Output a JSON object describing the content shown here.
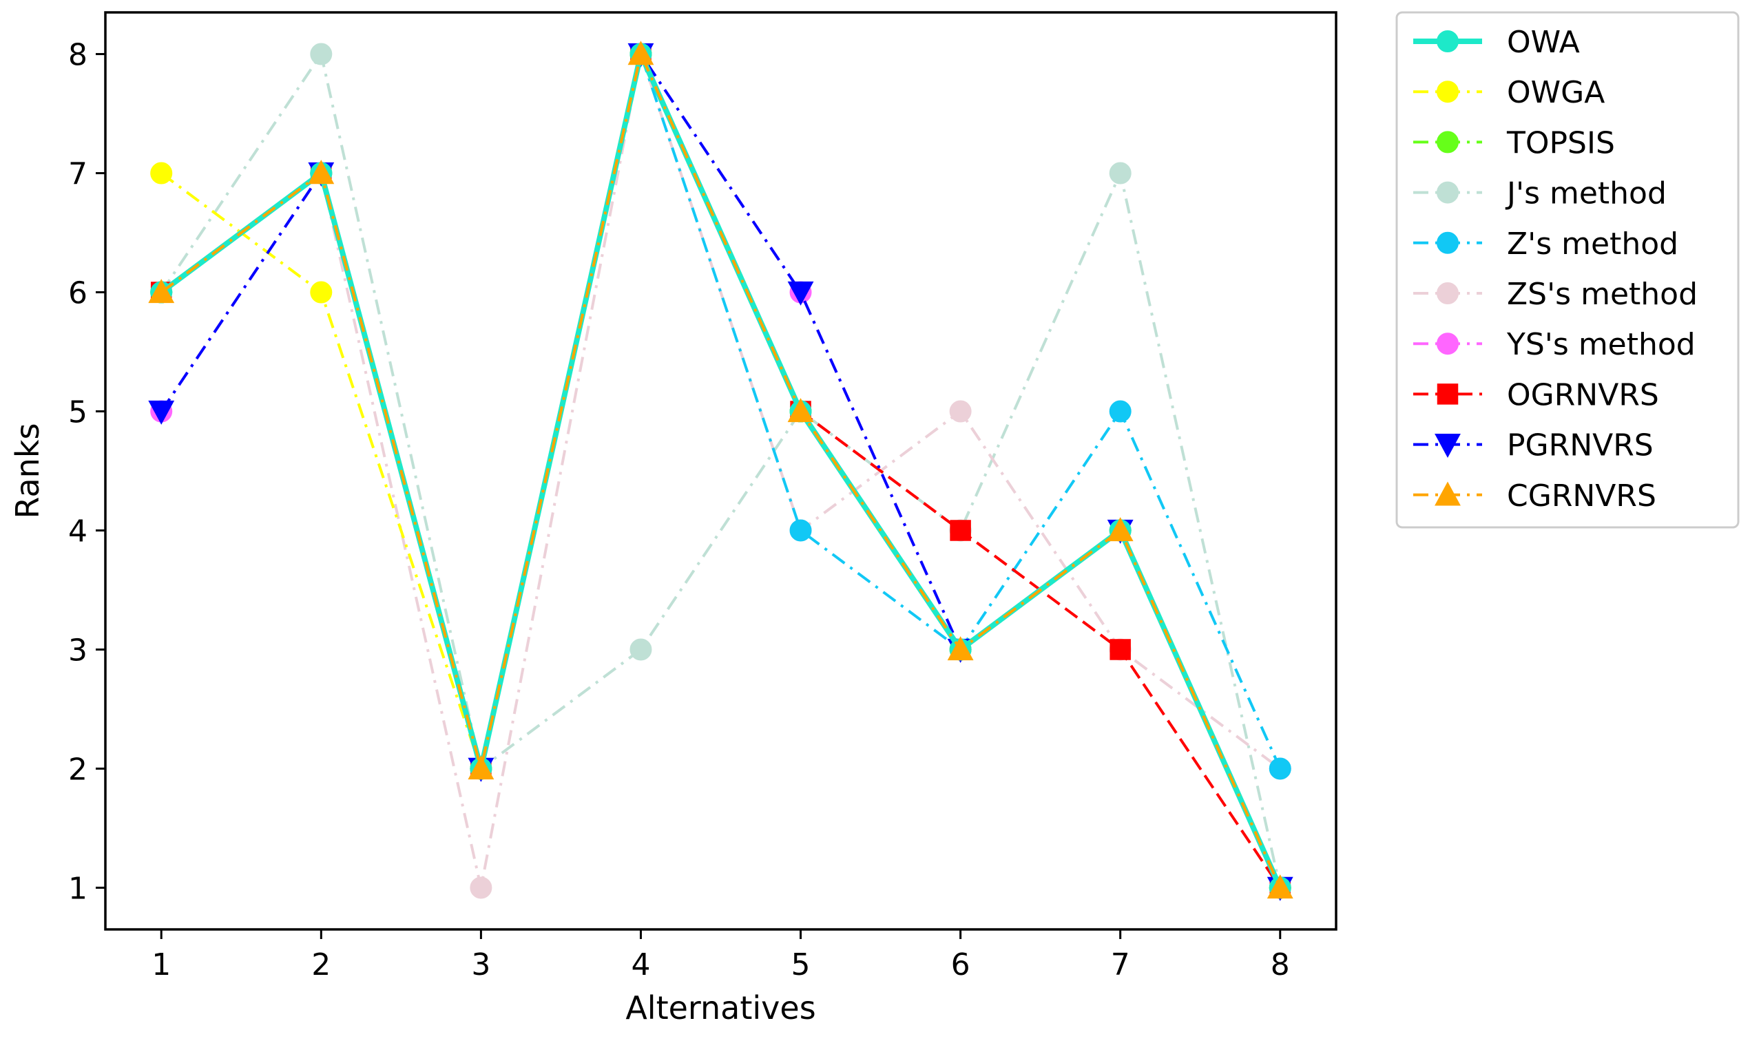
{
  "chart_data": {
    "type": "line",
    "title": "",
    "xlabel": "Alternatives",
    "ylabel": "Ranks",
    "x": [
      1,
      2,
      3,
      4,
      5,
      6,
      7,
      8
    ],
    "xlim": [
      0.65,
      8.35
    ],
    "ylim": [
      0.65,
      8.35
    ],
    "xticks": [
      "1",
      "2",
      "3",
      "4",
      "5",
      "6",
      "7",
      "8"
    ],
    "yticks": [
      "1",
      "2",
      "3",
      "4",
      "5",
      "6",
      "7",
      "8"
    ],
    "grid": false,
    "legend_position": "outside-right-top",
    "series": [
      {
        "name": "OWA",
        "color": "#1de9c9",
        "marker": "circle",
        "dash": "solid",
        "width": 8,
        "values": [
          6,
          7,
          2,
          8,
          5,
          3,
          4,
          1
        ]
      },
      {
        "name": "OWGA",
        "color": "#ffff00",
        "marker": "circle",
        "dash": "dashdot",
        "width": 4,
        "values": [
          7,
          6,
          2,
          8,
          5,
          3,
          4,
          1
        ]
      },
      {
        "name": "TOPSIS",
        "color": "#66ff19",
        "marker": "circle",
        "dash": "dashdot",
        "width": 4,
        "values": [
          6,
          7,
          2,
          8,
          5,
          3,
          4,
          1
        ]
      },
      {
        "name": "J's method",
        "color": "#bfe0d5",
        "marker": "circle",
        "dash": "dashdot",
        "width": 4,
        "values": [
          6,
          8,
          2,
          3,
          5,
          4,
          7,
          1
        ]
      },
      {
        "name": "Z's method",
        "color": "#11c8f5",
        "marker": "circle",
        "dash": "dashdot",
        "width": 4,
        "values": [
          6,
          7,
          2,
          8,
          4,
          3,
          5,
          2
        ]
      },
      {
        "name": "ZS's method",
        "color": "#ecd0d8",
        "marker": "circle",
        "dash": "dashdot",
        "width": 4,
        "values": [
          6,
          7,
          1,
          8,
          4,
          5,
          3,
          2
        ]
      },
      {
        "name": "YS's method",
        "color": "#ff66ff",
        "marker": "circle",
        "dash": "dashdot",
        "width": 4,
        "values": [
          5,
          7,
          2,
          8,
          6,
          3,
          4,
          1
        ]
      },
      {
        "name": "OGRNVRS",
        "color": "#ff0000",
        "marker": "square",
        "dash": "dashed",
        "width": 4,
        "values": [
          6,
          7,
          2,
          8,
          5,
          4,
          3,
          1
        ]
      },
      {
        "name": "PGRNVRS",
        "color": "#0000ff",
        "marker": "triangle-down",
        "dash": "dashdot",
        "width": 4,
        "values": [
          5,
          7,
          2,
          8,
          6,
          3,
          4,
          1
        ]
      },
      {
        "name": "CGRNVRS",
        "color": "#ffa500",
        "marker": "triangle-up",
        "dash": "dashdot",
        "width": 4,
        "values": [
          6,
          7,
          2,
          8,
          5,
          3,
          4,
          1
        ]
      }
    ]
  }
}
